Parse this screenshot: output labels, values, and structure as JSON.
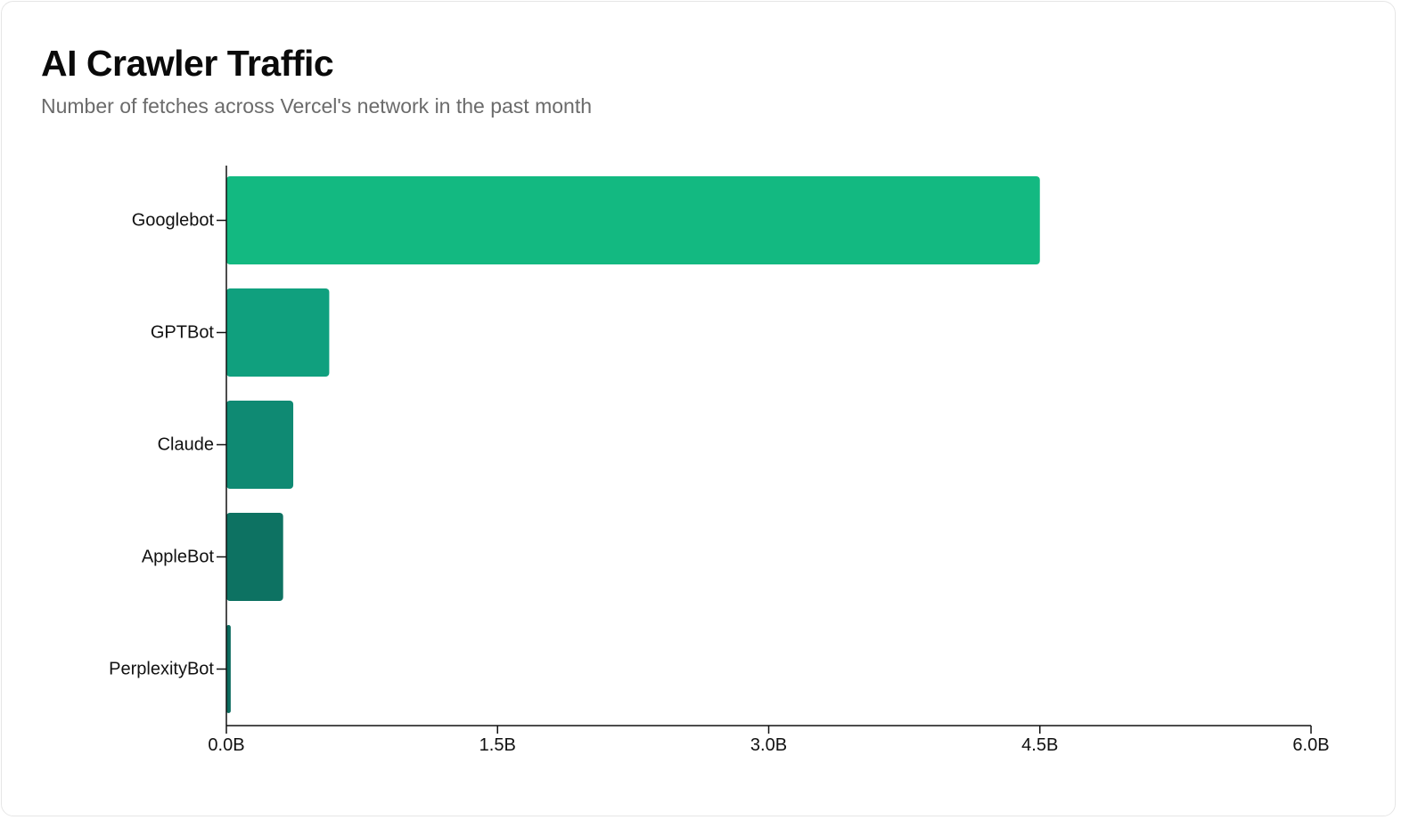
{
  "chart_data": {
    "type": "bar",
    "orientation": "horizontal",
    "title": "AI Crawler Traffic",
    "subtitle": "Number of fetches across Vercel's network in the past month",
    "categories": [
      "Googlebot",
      "GPTBot",
      "Claude",
      "AppleBot",
      "PerplexityBot"
    ],
    "values": [
      4.5,
      0.569,
      0.37,
      0.314,
      0.024
    ],
    "value_unit": "B",
    "xlim": [
      0,
      6
    ],
    "xticks": [
      0,
      1.5,
      3,
      4.5,
      6
    ],
    "xtick_labels": [
      "0.0B",
      "1.5B",
      "3.0B",
      "4.5B",
      "6.0B"
    ],
    "colors": [
      "#13b981",
      "#10a07e",
      "#0f8a73",
      "#0d7262",
      "#0c6b5e"
    ],
    "grid": false,
    "legend": "none"
  }
}
